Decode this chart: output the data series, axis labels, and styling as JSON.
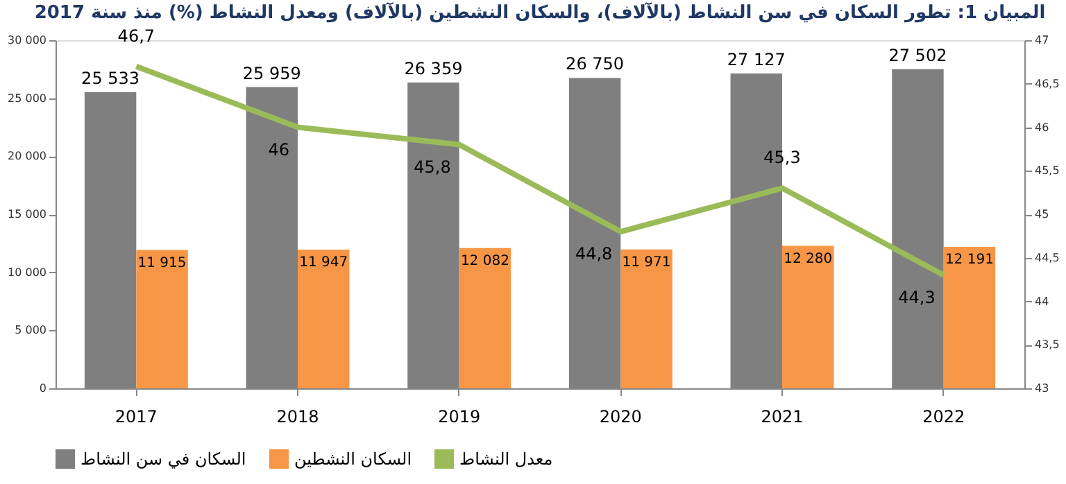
{
  "chart_data": {
    "type": "bar",
    "title": "المبيان 1: تطور السكان في سن النشاط (بالآلاف)، والسكان النشطين (بالآلاف) ومعدل النشاط (%) منذ سنة 2017",
    "categories": [
      "2017",
      "2018",
      "2019",
      "2020",
      "2021",
      "2022"
    ],
    "series": [
      {
        "name": "السكان في سن النشاط",
        "color": "#7f7f7f",
        "type": "bar",
        "values": [
          25533,
          25959,
          26359,
          26750,
          27127,
          27502
        ],
        "value_labels": [
          "25 533",
          "25 959",
          "26 359",
          "26 750",
          "27 127",
          "27 502"
        ]
      },
      {
        "name": "السكان النشطين",
        "color": "#f79646",
        "type": "bar",
        "values": [
          11915,
          11947,
          12082,
          11971,
          12280,
          12191
        ],
        "value_labels": [
          "11 915",
          "11 947",
          "12 082",
          "11 971",
          "12 280",
          "12 191"
        ]
      },
      {
        "name": "معدل النشاط",
        "color": "#9bbb59",
        "type": "line",
        "axis": "y2",
        "values": [
          46.7,
          46,
          45.8,
          44.8,
          45.3,
          44.3
        ],
        "value_labels": [
          "46,7",
          "46",
          "45,8",
          "44,8",
          "45,3",
          "44,3"
        ]
      }
    ],
    "ylim": [
      0,
      30000
    ],
    "yticks": [
      0,
      {
        "value": 5000,
        "label": "5 000"
      },
      {
        "value": 10000,
        "label": "10 000"
      },
      {
        "value": 15000,
        "label": "15 000"
      },
      {
        "value": 20000,
        "label": "20 000"
      },
      {
        "value": 25000,
        "label": "25 000"
      },
      {
        "value": 30000,
        "label": "30 000"
      }
    ],
    "y2lim": [
      43,
      47
    ],
    "y2ticks": [
      43,
      {
        "value": 43.5,
        "label": "43,5"
      },
      44,
      {
        "value": 44.5,
        "label": "44,5"
      },
      45,
      {
        "value": 45.5,
        "label": "45,5"
      },
      46,
      {
        "value": 46.5,
        "label": "46,5"
      },
      47
    ],
    "grid": false,
    "legend": "bottom",
    "marker": "none",
    "line_style": "solid"
  }
}
